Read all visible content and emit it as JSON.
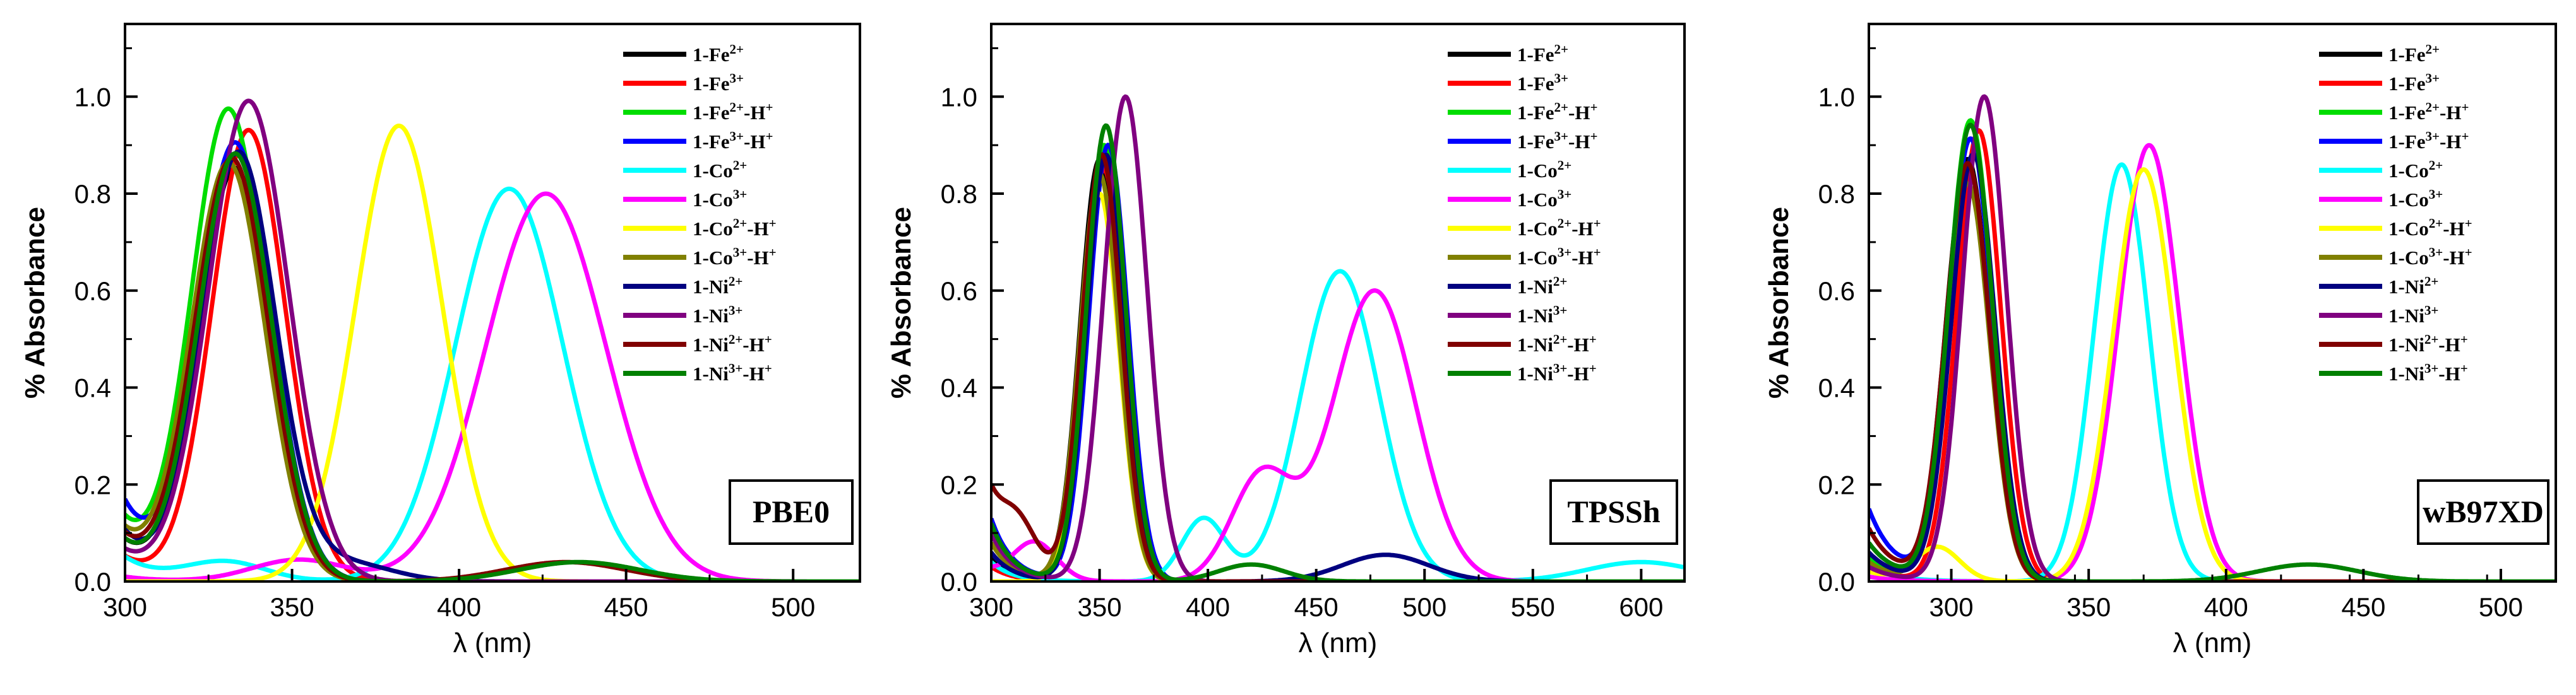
{
  "chart_data": [
    {
      "type": "line",
      "title": "PBE0",
      "xlabel": "λ (nm)",
      "ylabel": "% Absorbance",
      "xlim": [
        300,
        520
      ],
      "ylim": [
        0,
        1.15
      ],
      "xticks": [
        "300",
        "350",
        "400",
        "450",
        "500"
      ],
      "yticks": [
        "0.0",
        "0.2",
        "0.4",
        "0.6",
        "0.8",
        "1.0"
      ],
      "series": [
        {
          "name": "1-Fe²⁺",
          "color": "#000000",
          "peaks": [
            [
              333,
              0.85,
              11
            ]
          ],
          "tail_x": 300,
          "tail_y": 0.08
        },
        {
          "name": "1-Fe³⁺",
          "color": "#ff0000",
          "peaks": [
            [
              337,
              0.93,
              11
            ]
          ],
          "tail_x": 300,
          "tail_y": 0.05
        },
        {
          "name": "1-Fe²⁺-H⁺",
          "color": "#00dd00",
          "peaks": [
            [
              331,
              0.97,
              11
            ]
          ],
          "tail_x": 300,
          "tail_y": 0.12
        },
        {
          "name": "1-Fe³⁺-H⁺",
          "color": "#0000ff",
          "peaks": [
            [
              333,
              0.9,
              11
            ]
          ],
          "tail_x": 300,
          "tail_y": 0.16
        },
        {
          "name": "1-Co²⁺",
          "color": "#00ffff",
          "peaks": [
            [
              415,
              0.81,
              16
            ],
            [
              330,
              0.04,
              12
            ]
          ],
          "tail_x": 300,
          "tail_y": 0.05
        },
        {
          "name": "1-Co³⁺",
          "color": "#ff00ff",
          "peaks": [
            [
              426,
              0.8,
              18
            ],
            [
              352,
              0.045,
              14
            ]
          ],
          "tail_x": 300,
          "tail_y": 0.01
        },
        {
          "name": "1-Co²⁺-H⁺",
          "color": "#ffff00",
          "peaks": [
            [
              382,
              0.94,
              13
            ]
          ],
          "tail_x": 300,
          "tail_y": 0.0
        },
        {
          "name": "1-Co³⁺-H⁺",
          "color": "#808000",
          "peaks": [
            [
              331,
              0.86,
              11
            ]
          ],
          "tail_x": 300,
          "tail_y": 0.1
        },
        {
          "name": "1-Ni²⁺",
          "color": "#000080",
          "peaks": [
            [
              334,
              0.88,
              11
            ],
            [
              365,
              0.04,
              14
            ]
          ],
          "tail_x": 300,
          "tail_y": 0.1
        },
        {
          "name": "1-Ni³⁺",
          "color": "#800080",
          "peaks": [
            [
              337,
              0.99,
              12
            ]
          ],
          "tail_x": 300,
          "tail_y": 0.06
        },
        {
          "name": "1-Ni²⁺-H⁺",
          "color": "#800000",
          "peaks": [
            [
              332,
              0.87,
              11
            ],
            [
              432,
              0.04,
              18
            ]
          ],
          "tail_x": 300,
          "tail_y": 0.09
        },
        {
          "name": "1-Ni³⁺-H⁺",
          "color": "#008000",
          "peaks": [
            [
              333,
              0.88,
              11
            ],
            [
              436,
              0.04,
              18
            ]
          ],
          "tail_x": 300,
          "tail_y": 0.08
        }
      ]
    },
    {
      "type": "line",
      "title": "TPSSh",
      "xlabel": "λ (nm)",
      "ylabel": "% Absorbance",
      "xlim": [
        300,
        620
      ],
      "ylim": [
        0,
        1.15
      ],
      "xticks": [
        "300",
        "350",
        "400",
        "450",
        "500",
        "550",
        "600"
      ],
      "yticks": [
        "0.0",
        "0.2",
        "0.4",
        "0.6",
        "0.8",
        "1.0"
      ],
      "series": [
        {
          "name": "1-Fe²⁺",
          "color": "#000000",
          "peaks": [
            [
              350,
              0.87,
              9
            ]
          ],
          "tail_x": 300,
          "tail_y": 0.05
        },
        {
          "name": "1-Fe³⁺",
          "color": "#ff0000",
          "peaks": [
            [
              352,
              0.85,
              9
            ]
          ],
          "tail_x": 300,
          "tail_y": 0.03
        },
        {
          "name": "1-Fe²⁺-H⁺",
          "color": "#00dd00",
          "peaks": [
            [
              352,
              0.9,
              9
            ]
          ],
          "tail_x": 300,
          "tail_y": 0.1
        },
        {
          "name": "1-Fe³⁺-H⁺",
          "color": "#0000ff",
          "peaks": [
            [
              354,
              0.9,
              9
            ]
          ],
          "tail_x": 300,
          "tail_y": 0.13
        },
        {
          "name": "1-Co²⁺",
          "color": "#00ffff",
          "peaks": [
            [
              461,
              0.64,
              18
            ],
            [
              398,
              0.13,
              10
            ],
            [
              600,
              0.04,
              25
            ]
          ],
          "tail_x": 300,
          "tail_y": 0.04
        },
        {
          "name": "1-Co³⁺",
          "color": "#ff00ff",
          "peaks": [
            [
              477,
              0.6,
              19
            ],
            [
              425,
              0.22,
              14
            ],
            [
              320,
              0.08,
              10
            ]
          ],
          "tail_x": 300,
          "tail_y": 0.02
        },
        {
          "name": "1-Co²⁺-H⁺",
          "color": "#ffff00",
          "peaks": [
            [
              350,
              0.8,
              9
            ]
          ],
          "tail_x": 300,
          "tail_y": 0.0
        },
        {
          "name": "1-Co³⁺-H⁺",
          "color": "#808000",
          "peaks": [
            [
              350,
              0.84,
              9
            ]
          ],
          "tail_x": 300,
          "tail_y": 0.08
        },
        {
          "name": "1-Ni²⁺",
          "color": "#000080",
          "peaks": [
            [
              353,
              0.88,
              9
            ],
            [
              482,
              0.055,
              20
            ]
          ],
          "tail_x": 300,
          "tail_y": 0.06
        },
        {
          "name": "1-Ni³⁺",
          "color": "#800080",
          "peaks": [
            [
              362,
              1.0,
              10
            ]
          ],
          "tail_x": 300,
          "tail_y": 0.1
        },
        {
          "name": "1-Ni²⁺-H⁺",
          "color": "#800000",
          "peaks": [
            [
              351,
              0.88,
              9
            ],
            [
              312,
              0.1,
              9
            ]
          ],
          "tail_x": 300,
          "tail_y": 0.16
        },
        {
          "name": "1-Ni³⁺-H⁺",
          "color": "#008000",
          "peaks": [
            [
              353,
              0.94,
              9
            ],
            [
              420,
              0.035,
              15
            ]
          ],
          "tail_x": 300,
          "tail_y": 0.12
        }
      ]
    },
    {
      "type": "line",
      "title": "wB97XD",
      "xlabel": "λ (nm)",
      "ylabel": "% Absorbance",
      "xlim": [
        270,
        520
      ],
      "ylim": [
        0,
        1.15
      ],
      "xticks": [
        "300",
        "350",
        "400",
        "450",
        "500"
      ],
      "yticks": [
        "0.0",
        "0.2",
        "0.4",
        "0.6",
        "0.8",
        "1.0"
      ],
      "series": [
        {
          "name": "1-Fe²⁺",
          "color": "#000000",
          "peaks": [
            [
              306,
              0.87,
              8
            ]
          ],
          "tail_x": 270,
          "tail_y": 0.05
        },
        {
          "name": "1-Fe³⁺",
          "color": "#ff0000",
          "peaks": [
            [
              310,
              0.93,
              8
            ]
          ],
          "tail_x": 270,
          "tail_y": 0.03
        },
        {
          "name": "1-Fe²⁺-H⁺",
          "color": "#00dd00",
          "peaks": [
            [
              307,
              0.95,
              8
            ]
          ],
          "tail_x": 270,
          "tail_y": 0.05
        },
        {
          "name": "1-Fe³⁺-H⁺",
          "color": "#0000ff",
          "peaks": [
            [
              307,
              0.91,
              8
            ]
          ],
          "tail_x": 270,
          "tail_y": 0.15
        },
        {
          "name": "1-Co²⁺",
          "color": "#00ffff",
          "peaks": [
            [
              362,
              0.86,
              10
            ]
          ],
          "tail_x": 270,
          "tail_y": 0.03
        },
        {
          "name": "1-Co³⁺",
          "color": "#ff00ff",
          "peaks": [
            [
              372,
              0.9,
              11
            ]
          ],
          "tail_x": 270,
          "tail_y": 0.01
        },
        {
          "name": "1-Co²⁺-H⁺",
          "color": "#ffff00",
          "peaks": [
            [
              370,
              0.85,
              11
            ],
            [
              295,
              0.07,
              8
            ]
          ],
          "tail_x": 270,
          "tail_y": 0.02
        },
        {
          "name": "1-Co³⁺-H⁺",
          "color": "#808000",
          "peaks": [
            [
              306,
              0.82,
              8
            ]
          ],
          "tail_x": 270,
          "tail_y": 0.04
        },
        {
          "name": "1-Ni²⁺",
          "color": "#000080",
          "peaks": [
            [
              308,
              0.88,
              8
            ]
          ],
          "tail_x": 270,
          "tail_y": 0.06
        },
        {
          "name": "1-Ni³⁺",
          "color": "#800080",
          "peaks": [
            [
              312,
              1.0,
              8
            ]
          ],
          "tail_x": 270,
          "tail_y": 0.03
        },
        {
          "name": "1-Ni²⁺-H⁺",
          "color": "#800000",
          "peaks": [
            [
              306,
              0.86,
              8
            ]
          ],
          "tail_x": 270,
          "tail_y": 0.11
        },
        {
          "name": "1-Ni³⁺-H⁺",
          "color": "#008000",
          "peaks": [
            [
              307,
              0.94,
              8
            ],
            [
              430,
              0.035,
              18
            ]
          ],
          "tail_x": 270,
          "tail_y": 0.08
        }
      ]
    }
  ]
}
